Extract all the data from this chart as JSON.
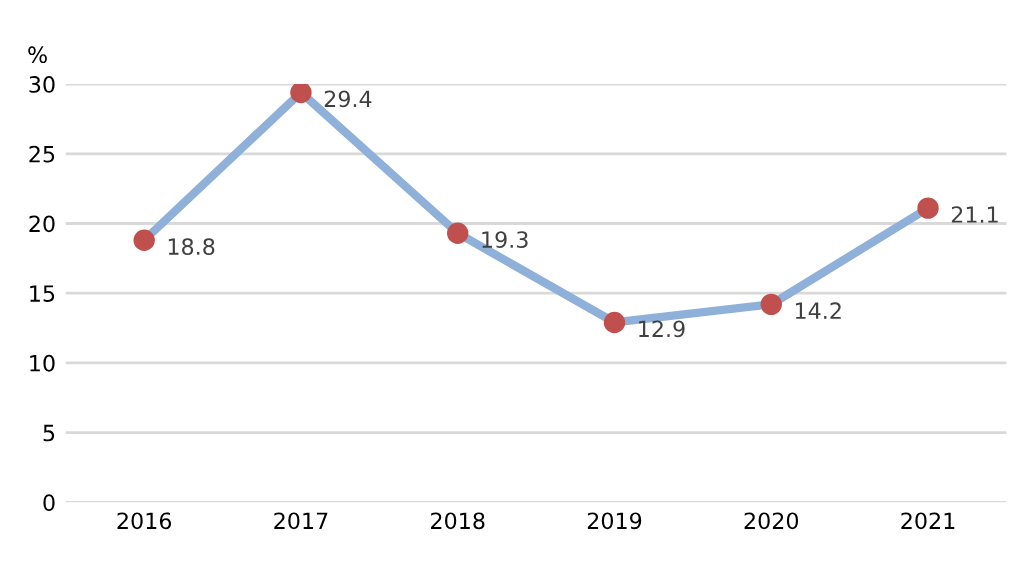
{
  "chart_data": {
    "type": "line",
    "ylabel": "%",
    "categories": [
      "2016",
      "2017",
      "2018",
      "2019",
      "2020",
      "2021"
    ],
    "series": [
      {
        "color": "#8fb0d8",
        "colors": [
          "#c0504d",
          "#c0504d",
          "#c0504d",
          "#c0504d",
          "#c0504d",
          "#c0504d"
        ],
        "values": [
          18.8,
          29.4,
          19.3,
          12.9,
          14.2,
          21.1
        ]
      }
    ],
    "ylim": [
      0,
      30
    ],
    "yticks": [
      0,
      5,
      10,
      15,
      20,
      25,
      30
    ],
    "grid": "y",
    "marker": "circle",
    "line_style": "solid",
    "data_labels": true
  }
}
